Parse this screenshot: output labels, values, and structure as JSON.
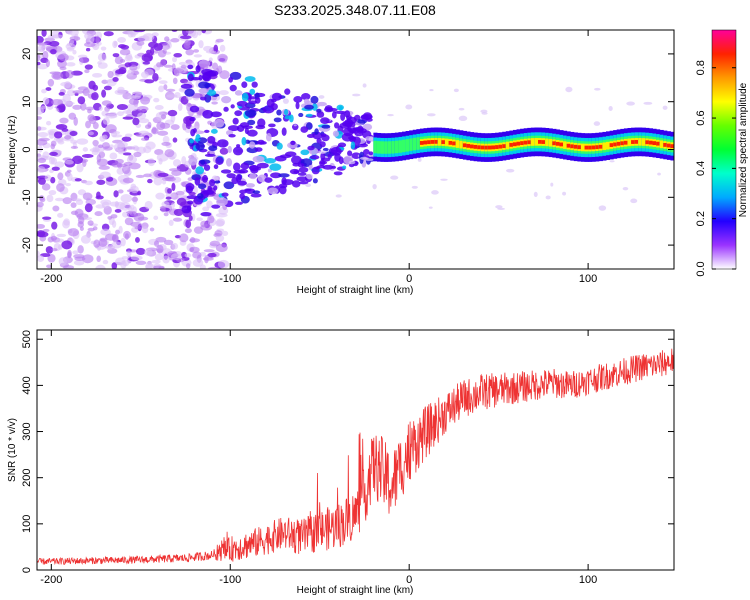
{
  "title": "S233.2025.348.07.11.E08",
  "chart_data": [
    {
      "type": "heatmap",
      "name": "spectrogram",
      "xlabel": "Height of straight line (km)",
      "ylabel": "Frequency (Hz)",
      "xlim": [
        -208,
        148
      ],
      "ylim": [
        -25,
        25
      ],
      "xticks": [
        -200,
        -100,
        0,
        100
      ],
      "yticks": [
        -20,
        -10,
        0,
        10,
        20
      ],
      "colorbar": {
        "label": "Normalized spectral amplitude",
        "range": [
          0,
          0.95
        ],
        "ticks": [
          "0.0",
          "0.2",
          "0.4",
          "0.6",
          "0.8"
        ]
      }
    },
    {
      "type": "line",
      "name": "snr",
      "xlabel": "Height of straight line (km)",
      "ylabel": "SNR (10 * v/v)",
      "xlim": [
        -208,
        148
      ],
      "ylim": [
        0,
        520
      ],
      "xticks": [
        -200,
        -100,
        0,
        100
      ],
      "yticks": [
        0,
        100,
        200,
        300,
        400,
        500
      ],
      "color": "#ee3333",
      "trend": {
        "x": [
          -208,
          -180,
          -150,
          -125,
          -110,
          -100,
          -85,
          -70,
          -60,
          -50,
          -40,
          -30,
          -25,
          -20,
          -15,
          -10,
          -5,
          0,
          5,
          10,
          15,
          20,
          30,
          40,
          50,
          60,
          70,
          80,
          90,
          100,
          110,
          120,
          130,
          140,
          148
        ],
        "y": [
          18,
          20,
          22,
          26,
          32,
          45,
          60,
          80,
          70,
          85,
          95,
          120,
          160,
          230,
          210,
          180,
          220,
          260,
          280,
          300,
          320,
          340,
          370,
          385,
          390,
          395,
          400,
          405,
          400,
          410,
          420,
          430,
          440,
          445,
          455
        ]
      },
      "noise": {
        "x": [
          -208,
          -150,
          -110,
          -100,
          -60,
          -30,
          -15,
          0,
          20,
          60,
          100,
          148
        ],
        "amp": [
          7,
          8,
          10,
          28,
          40,
          55,
          80,
          70,
          45,
          35,
          30,
          30
        ]
      }
    }
  ]
}
